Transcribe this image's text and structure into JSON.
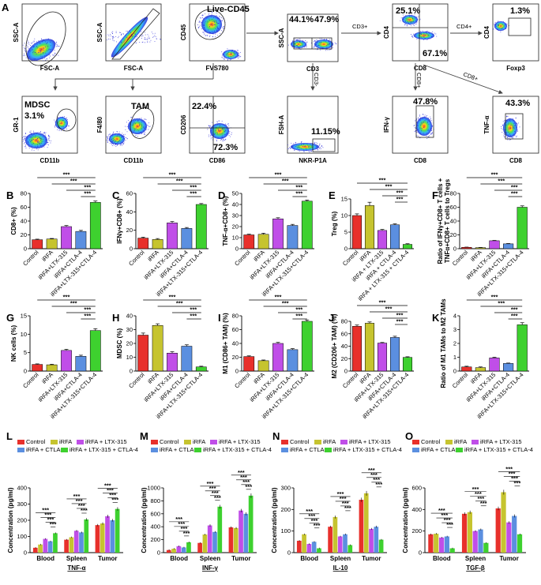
{
  "colors": {
    "Control": "#e8302b",
    "iRFA": "#c6c42f",
    "iRFA + LTX-315": "#c04ee8",
    "iRFA + CTLA-4": "#5b8fe0",
    "iRFA + LTX-315 + CTLA-4": "#3ed12f"
  },
  "flow": {
    "plots": [
      {
        "key": "p1",
        "xlabel": "FSC-A",
        "ylabel": "SSC-A",
        "gate": "ellipse"
      },
      {
        "key": "p2",
        "xlabel": "FSC-A",
        "ylabel": "SSC-A",
        "gate": "diag"
      },
      {
        "key": "p3",
        "xlabel": "FVS780",
        "ylabel": "CD45",
        "gate": "ellipse",
        "title": "Live-CD45"
      },
      {
        "key": "p4",
        "xlabel": "CD3",
        "ylabel": "SSC-A",
        "gate": "quad",
        "pcts": [
          "44.1%",
          "47.9%"
        ]
      },
      {
        "key": "p5",
        "xlabel": "CD8",
        "ylabel": "CD4",
        "gate": "quad",
        "pcts": [
          "25.1%",
          "67.1%"
        ]
      },
      {
        "key": "p6",
        "xlabel": "Foxp3",
        "ylabel": "CD4",
        "gate": "rect",
        "pcts": [
          "1.3%"
        ]
      },
      {
        "key": "p7",
        "xlabel": "CD11b",
        "ylabel": "GR-1",
        "gate": "ellipse",
        "title": "MDSC",
        "pcts": [
          "3.1%"
        ]
      },
      {
        "key": "p8",
        "xlabel": "CD11b",
        "ylabel": "F4/80",
        "gate": "ellipse",
        "title": "TAM"
      },
      {
        "key": "p9",
        "xlabel": "CD86",
        "ylabel": "CD206",
        "gate": "quad",
        "pcts": [
          "22.4%",
          "72.3%"
        ]
      },
      {
        "key": "p10",
        "xlabel": "NKR-P1A",
        "ylabel": "FSH-A",
        "gate": "rect",
        "pcts": [
          "11.15%"
        ]
      },
      {
        "key": "p11",
        "xlabel": "CD8",
        "ylabel": "IFN-γ",
        "gate": "rect",
        "pcts": [
          "47.8%"
        ]
      },
      {
        "key": "p12",
        "xlabel": "CD8",
        "ylabel": "TNF-α",
        "gate": "rect",
        "pcts": [
          "43.3%"
        ]
      }
    ],
    "arrows": [
      "CD3+",
      "CD4+",
      "CD8+",
      "CD3-",
      "CD8+"
    ]
  },
  "chart_data": [
    {
      "panel": "B",
      "type": "bar",
      "ylabel": "CD8+ (%)",
      "ylim": [
        0,
        80
      ],
      "ticks": [
        0,
        20,
        40,
        60,
        80
      ],
      "categories": [
        "Control",
        "iRFA",
        "iRFA+LTX-315",
        "iRFA+CTLA-4",
        "iRFA+LTX-315+CTLA-4"
      ],
      "values": [
        13,
        14,
        32,
        25,
        67
      ],
      "errors": [
        0.8,
        0.8,
        1.5,
        1.5,
        2
      ],
      "sig": [
        "***",
        "***",
        "***",
        "***"
      ]
    },
    {
      "panel": "C",
      "type": "bar",
      "ylabel": "IFNγ+CD8+ (%)",
      "ylim": [
        0,
        60
      ],
      "ticks": [
        0,
        20,
        40,
        60
      ],
      "categories": [
        "Control",
        "iRFA",
        "iRFA+LTX-315",
        "iRFA+CTLA-4",
        "iRFA+LTX-315+CTLA-4"
      ],
      "values": [
        11.5,
        10,
        28,
        22,
        48
      ],
      "errors": [
        1,
        1,
        1.5,
        1,
        1
      ],
      "sig": [
        "***",
        "***",
        "***",
        "***"
      ]
    },
    {
      "panel": "D",
      "type": "bar",
      "ylabel": "TNF-α+CD8+ (%)",
      "ylim": [
        0,
        50
      ],
      "ticks": [
        0,
        10,
        20,
        30,
        40,
        50
      ],
      "categories": [
        "Control",
        "iRFA",
        "iRFA+LTX-315",
        "iRFA+CTLA-4",
        "iRFA+LTX-315+CTLA-4"
      ],
      "values": [
        12.5,
        13,
        27,
        21,
        43
      ],
      "errors": [
        0.6,
        1,
        1,
        1,
        1
      ],
      "sig": [
        "***",
        "***",
        "***",
        "***"
      ]
    },
    {
      "panel": "E",
      "type": "bar",
      "ylabel": "Treg (%)",
      "ylim": [
        0,
        15
      ],
      "ticks": [
        0,
        5,
        10,
        15
      ],
      "categories": [
        "Control",
        "iRFA",
        "iRFA + LTX-315",
        "iRFA + CTLA-4",
        "iRFA + LTX-315 + CTLA-4"
      ],
      "values": [
        10,
        13,
        5.5,
        7.2,
        1.3
      ],
      "errors": [
        0.5,
        1,
        0.3,
        0.3,
        0.2
      ],
      "sig": [
        "***",
        "***",
        "***",
        "***"
      ]
    },
    {
      "panel": "F",
      "type": "bar",
      "ylabel": "Ratio of IFNγ+CD8+ T cells + TNFα+CD8+ T cells to Tregs",
      "ylim": [
        0,
        80
      ],
      "ticks": [
        0,
        20,
        40,
        60,
        80
      ],
      "categories": [
        "Control",
        "iRFA",
        "iRFA+LTX-315",
        "iRFA+CTLA-4",
        "iRFA+LTX-315+CTLA-4"
      ],
      "values": [
        2,
        1.5,
        11.5,
        7,
        60
      ],
      "errors": [
        0.3,
        0.3,
        0.5,
        0.5,
        2
      ],
      "sig": [
        "***",
        "***",
        "***",
        "***"
      ]
    },
    {
      "panel": "G",
      "type": "bar",
      "ylabel": "NK cells (%)",
      "ylim": [
        0,
        15
      ],
      "ticks": [
        0,
        5,
        10,
        15
      ],
      "categories": [
        "Control",
        "iRFA",
        "iRFA+LTX-315",
        "iRFA+CTLA-4",
        "iRFA+LTX-315+CTLA-4"
      ],
      "values": [
        1.8,
        1.7,
        5.6,
        4,
        11
      ],
      "errors": [
        0.15,
        0.15,
        0.3,
        0.3,
        0.5
      ],
      "sig": [
        "***",
        "***",
        "***",
        "***"
      ]
    },
    {
      "panel": "H",
      "type": "bar",
      "ylabel": "MDSC (%)",
      "ylim": [
        0,
        40
      ],
      "ticks": [
        0,
        10,
        20,
        30,
        40
      ],
      "categories": [
        "Control",
        "iRFA",
        "iRFA+LTX-315",
        "iRFA+CTLA-4",
        "iRFA+LTX-315+CTLA-4"
      ],
      "values": [
        26,
        33,
        13,
        18,
        3
      ],
      "errors": [
        1.5,
        1.2,
        1,
        1,
        0.5
      ],
      "sig": [
        "***",
        "***",
        "***",
        "***"
      ]
    },
    {
      "panel": "I",
      "type": "bar",
      "ylabel": "M1 (CD86+ TAM) (%)",
      "ylim": [
        0,
        80
      ],
      "ticks": [
        0,
        20,
        40,
        60,
        80
      ],
      "categories": [
        "Control",
        "iRFA",
        "iRFA+LTX-315",
        "iRFA+CTLA-4",
        "iRFA+LTX-315+CTLA-4"
      ],
      "values": [
        21,
        15,
        40,
        31,
        72
      ],
      "errors": [
        1,
        1,
        1.5,
        1.5,
        2
      ],
      "sig": [
        "***",
        "***",
        "***",
        "***"
      ]
    },
    {
      "panel": "J",
      "type": "bar",
      "ylabel": "M2 (CD206+ TAM) (%)",
      "ylim": [
        0,
        80
      ],
      "ticks": [
        0,
        20,
        40,
        60,
        80
      ],
      "categories": [
        "Control",
        "iRFA",
        "iRFA+LTX-315",
        "iRFA+CTLA-4",
        "iRFA+LTX-315+CTLA-4"
      ],
      "values": [
        72,
        77,
        45,
        54,
        22
      ],
      "errors": [
        2,
        2,
        1,
        2,
        1
      ],
      "sig": [
        "***",
        "***",
        "***",
        "***"
      ]
    },
    {
      "panel": "K",
      "type": "bar",
      "ylabel": "Ratio of M1 TAMs to M2 TAMs",
      "ylim": [
        0,
        4
      ],
      "ticks": [
        0,
        1,
        2,
        3,
        4
      ],
      "categories": [
        "Control",
        "iRFA",
        "iRFA+LTX-315",
        "iRFA+CTLA-4",
        "iRFA+LTX-315+CTLA-4"
      ],
      "values": [
        0.3,
        0.25,
        0.95,
        0.55,
        3.35
      ],
      "errors": [
        0.05,
        0.05,
        0.05,
        0.03,
        0.15
      ],
      "sig": [
        "***",
        "***",
        "***",
        "***"
      ]
    },
    {
      "panel": "L",
      "type": "bar",
      "title": "TNF-α",
      "ylabel": "Concentration (pg/ml)",
      "ylim": [
        0,
        400
      ],
      "ticks": [
        0,
        100,
        200,
        300,
        400
      ],
      "legend": [
        "Control",
        "iRFA",
        "iRFA + LTX-315",
        "iRFA + CTLA-4",
        "iRFA + LTX-315 + CTLA-4"
      ],
      "categories": [
        "Blood",
        "Spleen",
        "Tumor"
      ],
      "series": [
        {
          "name": "Control",
          "values": [
            30,
            80,
            170
          ]
        },
        {
          "name": "iRFA",
          "values": [
            50,
            95,
            180
          ]
        },
        {
          "name": "iRFA + LTX-315",
          "values": [
            85,
            135,
            225
          ]
        },
        {
          "name": "iRFA + CTLA-4",
          "values": [
            70,
            125,
            200
          ]
        },
        {
          "name": "iRFA + LTX-315 + CTLA-4",
          "values": [
            120,
            205,
            270
          ]
        }
      ],
      "sig": [
        "***",
        "***",
        "***",
        "***"
      ]
    },
    {
      "panel": "M",
      "type": "bar",
      "title": "INF-γ",
      "ylabel": "Concentration (pg/ml)",
      "ylim": [
        0,
        1000
      ],
      "ticks": [
        0,
        200,
        400,
        600,
        800,
        1000
      ],
      "legend": [
        "Control",
        "iRFA",
        "iRFA + LTX-315",
        "iRFA + CTLA-4",
        "iRFA + LTX-315 + CTLA-4"
      ],
      "categories": [
        "Blood",
        "Spleen",
        "Tumor"
      ],
      "series": [
        {
          "name": "Control",
          "values": [
            40,
            150,
            390
          ]
        },
        {
          "name": "iRFA",
          "values": [
            60,
            280,
            380
          ]
        },
        {
          "name": "iRFA + LTX-315",
          "values": [
            100,
            420,
            650
          ]
        },
        {
          "name": "iRFA + CTLA-4",
          "values": [
            80,
            320,
            600
          ]
        },
        {
          "name": "iRFA + LTX-315 + CTLA-4",
          "values": [
            160,
            710,
            880
          ]
        }
      ],
      "sig": [
        "***",
        "***",
        "***",
        "***"
      ]
    },
    {
      "panel": "N",
      "type": "bar",
      "title": "IL-10",
      "ylabel": "Concentration (pg/ml)",
      "ylim": [
        0,
        300
      ],
      "ticks": [
        0,
        100,
        200,
        300
      ],
      "legend": [
        "Control",
        "iRFA",
        "iRFA + LTX-315",
        "iRFA + CTLA-4",
        "iRFA + LTX-315 + CTLA-4"
      ],
      "categories": [
        "Blood",
        "Spleen",
        "Tumor"
      ],
      "series": [
        {
          "name": "Control",
          "values": [
            55,
            120,
            245
          ]
        },
        {
          "name": "iRFA",
          "values": [
            85,
            165,
            275
          ]
        },
        {
          "name": "iRFA + LTX-315",
          "values": [
            40,
            75,
            110
          ]
        },
        {
          "name": "iRFA + CTLA-4",
          "values": [
            50,
            85,
            120
          ]
        },
        {
          "name": "iRFA + LTX-315 + CTLA-4",
          "values": [
            20,
            35,
            60
          ]
        }
      ],
      "sig": [
        "***",
        "***",
        "***",
        "***"
      ]
    },
    {
      "panel": "O",
      "type": "bar",
      "title": "TGF-β",
      "ylabel": "Concentration (pg/ml)",
      "ylim": [
        0,
        600
      ],
      "ticks": [
        0,
        200,
        400,
        600
      ],
      "legend": [
        "Control",
        "iRFA",
        "iRFA + LTX-315",
        "iRFA + CTLA-4",
        "iRFA + LTX-315 + CTLA-4"
      ],
      "categories": [
        "Blood",
        "Spleen",
        "Tumor"
      ],
      "series": [
        {
          "name": "Control",
          "values": [
            170,
            360,
            410
          ]
        },
        {
          "name": "iRFA",
          "values": [
            175,
            375,
            560
          ]
        },
        {
          "name": "iRFA + LTX-315",
          "values": [
            140,
            200,
            280
          ]
        },
        {
          "name": "iRFA + CTLA-4",
          "values": [
            150,
            215,
            340
          ]
        },
        {
          "name": "iRFA + LTX-315 + CTLA-4",
          "values": [
            40,
            90,
            170
          ]
        }
      ],
      "sig": [
        "***",
        "***",
        "***",
        "***"
      ]
    }
  ]
}
